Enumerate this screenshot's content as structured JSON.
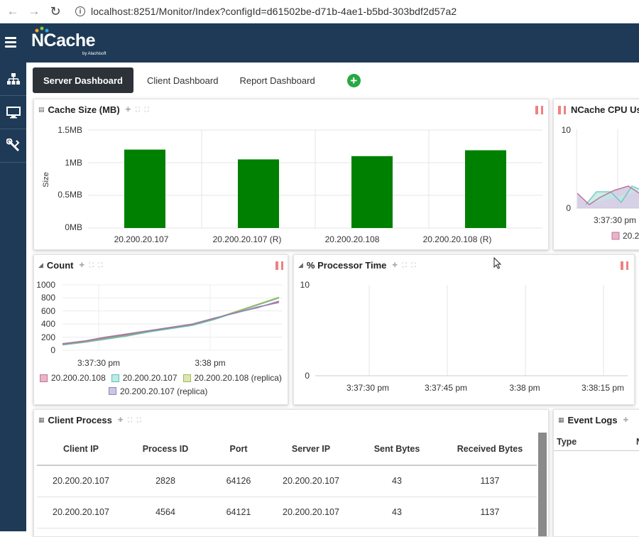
{
  "browser": {
    "url": "localhost:8251/Monitor/Index?configId=d61502be-d71b-4ae1-b5bd-303bdf2d57a2"
  },
  "logo": {
    "text": "NCache",
    "sub": "by Alachisoft"
  },
  "tabs": [
    {
      "label": "Server Dashboard",
      "active": true
    },
    {
      "label": "Client Dashboard",
      "active": false
    },
    {
      "label": "Report Dashboard",
      "active": false
    }
  ],
  "cache_size": {
    "title": "Cache Size (MB)",
    "ylabel": "Size",
    "ticks": [
      "1.5MB",
      "1MB",
      "0.5MB",
      "0MB"
    ],
    "categories": [
      "20.200.20.107",
      "20.200.20.107 (R)",
      "20.200.20.108",
      "20.200.20.108 (R)"
    ]
  },
  "cpu_usage": {
    "title": "NCache CPU Usa",
    "ticks": [
      "10",
      "0"
    ],
    "xlabel": "3:37:30 pm",
    "legend": "20.2"
  },
  "count": {
    "title": "Count",
    "ticks": [
      "1000",
      "800",
      "600",
      "400",
      "200",
      "0"
    ],
    "xticks": [
      "3:37:30 pm",
      "3:38 pm"
    ],
    "legend": [
      {
        "name": "20.200.20.108",
        "color": "#e8b4c8",
        "border": "#c27495"
      },
      {
        "name": "20.200.20.107",
        "color": "#bfe9e5",
        "border": "#5cc0b7"
      },
      {
        "name": "20.200.20.108 (replica)",
        "color": "#dbe6b2",
        "border": "#a4b95c"
      },
      {
        "name": "20.200.20.107 (replica)",
        "color": "#cdc6e2",
        "border": "#8e84b6"
      }
    ]
  },
  "processor_time": {
    "title": "% Processor Time",
    "ticks": [
      "10",
      "0"
    ],
    "xticks": [
      "3:37:30 pm",
      "3:37:45 pm",
      "3:38 pm",
      "3:38:15 pm"
    ]
  },
  "client_process": {
    "title": "Client Process",
    "columns": [
      "Client IP",
      "Process ID",
      "Port",
      "Server IP",
      "Sent Bytes",
      "Received Bytes"
    ],
    "rows": [
      [
        "20.200.20.107",
        "2828",
        "64126",
        "20.200.20.107",
        "43",
        "1137"
      ],
      [
        "20.200.20.107",
        "4564",
        "64121",
        "20.200.20.107",
        "43",
        "1137"
      ]
    ]
  },
  "event_logs": {
    "title": "Event Logs",
    "columns": [
      "Type",
      "N"
    ]
  },
  "colors": {
    "header": "#1e3a56",
    "bar": "#008000",
    "pause": "#f08080",
    "add": "#27a844"
  },
  "chart_data": [
    {
      "type": "bar",
      "title": "Cache Size (MB)",
      "ylabel": "Size",
      "categories": [
        "20.200.20.107",
        "20.200.20.107 (R)",
        "20.200.20.108",
        "20.200.20.108 (R)"
      ],
      "values": [
        1.2,
        1.05,
        1.1,
        1.19
      ],
      "ylim": [
        0,
        1.5
      ]
    },
    {
      "type": "line",
      "title": "Count",
      "ylim": [
        0,
        1000
      ],
      "series": [
        {
          "name": "20.200.20.108",
          "x": [
            0,
            10,
            20,
            30,
            40,
            50,
            60,
            70,
            80,
            90,
            100
          ],
          "values": [
            100,
            140,
            200,
            250,
            300,
            350,
            400,
            490,
            570,
            660,
            730
          ]
        },
        {
          "name": "20.200.20.107",
          "x": [
            0,
            10,
            20,
            30,
            40,
            50,
            60,
            70,
            80,
            90,
            100
          ],
          "values": [
            80,
            120,
            170,
            220,
            280,
            330,
            380,
            470,
            580,
            690,
            800
          ]
        },
        {
          "name": "20.200.20.108 (replica)",
          "x": [
            0,
            10,
            20,
            30,
            40,
            50,
            60,
            70,
            80,
            90,
            100
          ],
          "values": [
            90,
            125,
            180,
            230,
            290,
            340,
            390,
            480,
            590,
            700,
            810
          ]
        },
        {
          "name": "20.200.20.107 (replica)",
          "x": [
            0,
            10,
            20,
            30,
            40,
            50,
            60,
            70,
            80,
            90,
            100
          ],
          "values": [
            95,
            135,
            190,
            240,
            295,
            345,
            395,
            485,
            575,
            650,
            750
          ]
        }
      ]
    }
  ]
}
